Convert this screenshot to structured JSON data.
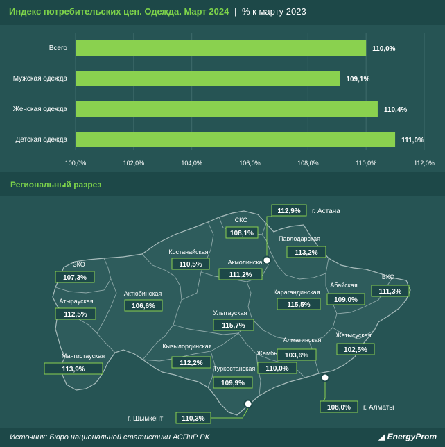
{
  "title": {
    "main": "Индекс потребительских цен. Одежда. Март 2024",
    "separator": "|",
    "sub": "% к марту 2023"
  },
  "colors": {
    "bar": "#8ad14f",
    "accent": "#7dd34a",
    "bg": "#265454",
    "region": "#2e5c5c",
    "region_stroke": "#8fa9a9",
    "badge_border": "#8ad14f"
  },
  "chart_data": {
    "type": "bar",
    "orientation": "horizontal",
    "categories": [
      "Всего",
      "Мужская одежда",
      "Женская одежда",
      "Детская одежда"
    ],
    "values": [
      110.0,
      109.1,
      110.4,
      111.0
    ],
    "value_labels": [
      "110,0%",
      "109,1%",
      "110,4%",
      "111,0%"
    ],
    "xlim": [
      100,
      112
    ],
    "xticks": [
      100,
      102,
      104,
      106,
      108,
      110,
      112
    ],
    "xtick_labels": [
      "100,0%",
      "102,0%",
      "104,0%",
      "106,0%",
      "108,0%",
      "110,0%",
      "112,0%"
    ],
    "grid": true
  },
  "regional": {
    "heading": "Региональный разрез",
    "regions": [
      {
        "name": "ЗКО",
        "value": "107,3%"
      },
      {
        "name": "Атырауская",
        "value": "112,5%"
      },
      {
        "name": "Мангистауская",
        "value": "113,9%"
      },
      {
        "name": "Актюбинская",
        "value": "106,6%"
      },
      {
        "name": "Костанайская",
        "value": "110,5%"
      },
      {
        "name": "СКО",
        "value": "108,1%"
      },
      {
        "name": "Акмолинская",
        "value": "111,2%"
      },
      {
        "name": "Павлодарская",
        "value": "113,2%"
      },
      {
        "name": "Карагандинская",
        "value": "115,5%"
      },
      {
        "name": "Абайская",
        "value": "109,0%"
      },
      {
        "name": "ВКО",
        "value": "111,3%"
      },
      {
        "name": "Улытауская",
        "value": "115,7%"
      },
      {
        "name": "Кызылординская",
        "value": "112,2%"
      },
      {
        "name": "Жамбылская",
        "value": "110,0%"
      },
      {
        "name": "Алматинская",
        "value": "103,6%"
      },
      {
        "name": "Жетысуская",
        "value": "102,5%"
      },
      {
        "name": "Туркестанская",
        "value": "109,9%"
      }
    ],
    "cities": [
      {
        "name": "г. Астана",
        "value": "112,9%"
      },
      {
        "name": "г. Алматы",
        "value": "108,0%"
      },
      {
        "name": "г. Шымкент",
        "value": "110,3%"
      }
    ]
  },
  "footer": {
    "source": "Источник: Бюро национальной статистики АСПиР РК",
    "logo": "EnergyProm"
  }
}
